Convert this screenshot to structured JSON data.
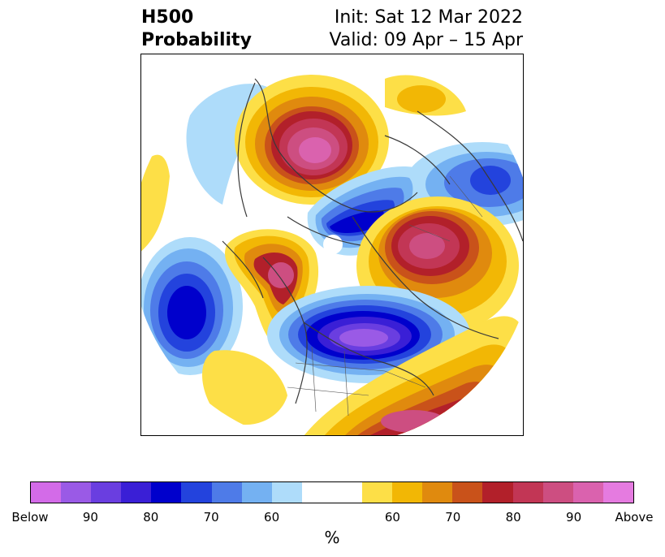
{
  "title": {
    "left_line1": "H500",
    "left_line2": "Probability",
    "right_line1": "Init: Sat 12 Mar 2022",
    "right_line2": "Valid: 09 Apr – 15 Apr"
  },
  "colorbar": {
    "colors": [
      "#d36be8",
      "#9a5ae6",
      "#6a3ee0",
      "#3a1fd6",
      "#0000cc",
      "#2343dd",
      "#4e7be8",
      "#74b1f2",
      "#aedcfa",
      "#ffffff",
      "#ffffff",
      "#fddf47",
      "#f2b705",
      "#e08a0e",
      "#c9521a",
      "#b2202a",
      "#c23655",
      "#cd4e81",
      "#da62ae",
      "#e57be0"
    ],
    "tick_labels": [
      "Below",
      "90",
      "80",
      "70",
      "60",
      "",
      "60",
      "70",
      "80",
      "90",
      "Above"
    ],
    "unit_label": "%"
  }
}
